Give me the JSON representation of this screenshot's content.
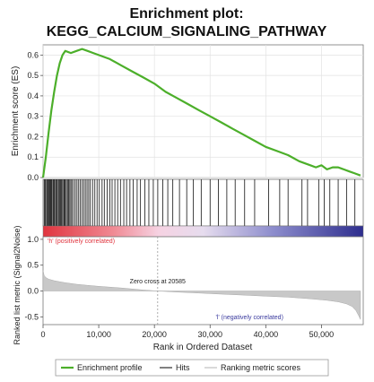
{
  "chart_data": {
    "type": "line",
    "title_line1": "Enrichment plot:",
    "title_line2": "KEGG_CALCIUM_SIGNALING_PATHWAY",
    "es_panel": {
      "ylabel": "Enrichment score (ES)",
      "ylim": [
        0,
        0.65
      ],
      "yticks": [
        "0.0",
        "0.1",
        "0.2",
        "0.3",
        "0.4",
        "0.5",
        "0.6"
      ],
      "ytick_values": [
        0.0,
        0.1,
        0.2,
        0.3,
        0.4,
        0.5,
        0.6
      ],
      "color": "#4caf2a",
      "x": [
        0,
        500,
        1000,
        1500,
        2000,
        2500,
        3000,
        3500,
        4000,
        5000,
        6000,
        7000,
        8000,
        9000,
        10000,
        12000,
        14000,
        16000,
        18000,
        20000,
        22000,
        24000,
        26000,
        28000,
        30000,
        32000,
        34000,
        36000,
        38000,
        40000,
        42000,
        44000,
        46000,
        48000,
        49000,
        50000,
        51000,
        52000,
        53000,
        54000,
        55000,
        56000,
        57000
      ],
      "y": [
        0.0,
        0.1,
        0.22,
        0.33,
        0.42,
        0.5,
        0.56,
        0.6,
        0.62,
        0.61,
        0.62,
        0.63,
        0.62,
        0.61,
        0.6,
        0.58,
        0.55,
        0.52,
        0.49,
        0.46,
        0.42,
        0.39,
        0.36,
        0.33,
        0.3,
        0.27,
        0.24,
        0.21,
        0.18,
        0.15,
        0.13,
        0.11,
        0.08,
        0.06,
        0.05,
        0.06,
        0.04,
        0.05,
        0.05,
        0.04,
        0.03,
        0.02,
        0.01
      ]
    },
    "hits": [
      200,
      350,
      500,
      700,
      850,
      1000,
      1150,
      1300,
      1450,
      1600,
      1800,
      1950,
      2100,
      2300,
      2450,
      2600,
      2800,
      3000,
      3150,
      3300,
      3500,
      3700,
      3850,
      4000,
      4200,
      4400,
      4600,
      4800,
      5000,
      5200,
      5500,
      5800,
      6100,
      6400,
      6700,
      7000,
      7300,
      7600,
      7900,
      8200,
      8500,
      8900,
      9300,
      9700,
      10100,
      10600,
      11000,
      11500,
      12000,
      12400,
      12900,
      13400,
      13900,
      14500,
      15000,
      15600,
      16200,
      16900,
      17500,
      18300,
      19000,
      19800,
      20600,
      21500,
      22400,
      23300,
      24500,
      25800,
      27000,
      28400,
      30000,
      31500,
      33000,
      34500,
      36200,
      38000,
      40500,
      42500,
      44000,
      46500,
      47500,
      49500,
      50500,
      51500,
      53000,
      54500,
      56000
    ],
    "ranked_metric": {
      "ylabel": "Ranked list metric (Signal2Noise)",
      "ytick_labels": [
        "1.0",
        "0.5",
        "0.0",
        "-0.5"
      ],
      "ytick_values": [
        1.0,
        0.5,
        0.0,
        -0.5
      ],
      "ylim": [
        -0.65,
        1.05
      ],
      "x": [
        0,
        200,
        500,
        1000,
        2000,
        3000,
        4000,
        6000,
        8000,
        10000,
        14000,
        18000,
        20585,
        24000,
        28000,
        32000,
        36000,
        40000,
        44000,
        48000,
        51000,
        53000,
        54500,
        55500,
        56200,
        56700,
        57000
      ],
      "y": [
        0.4,
        0.3,
        0.26,
        0.23,
        0.2,
        0.18,
        0.16,
        0.13,
        0.11,
        0.09,
        0.06,
        0.02,
        0.0,
        -0.02,
        -0.04,
        -0.06,
        -0.08,
        -0.1,
        -0.12,
        -0.15,
        -0.18,
        -0.21,
        -0.25,
        -0.3,
        -0.38,
        -0.48,
        -0.55
      ],
      "zero_cross_label": "Zero cross at 20585",
      "zero_cross_x": 20585,
      "pos_label": "'h' (positively correlated)",
      "neg_label": "'l' (negatively correlated)",
      "pos_color": "#e0343e",
      "neg_color": "#3a3a9e"
    },
    "xlabel": "Rank in Ordered Dataset",
    "xlim": [
      0,
      57500
    ],
    "xticks": [
      "0",
      "10,000",
      "20,000",
      "30,000",
      "40,000",
      "50,000"
    ],
    "xtick_values": [
      0,
      10000,
      20000,
      30000,
      40000,
      50000
    ],
    "legend": {
      "placement": "bottom",
      "entries": [
        {
          "label": "Enrichment profile",
          "color": "#4caf2a"
        },
        {
          "label": "Hits",
          "color": "#555555"
        },
        {
          "label": "Ranking metric scores",
          "color": "#cccccc"
        }
      ]
    },
    "grid": true
  }
}
